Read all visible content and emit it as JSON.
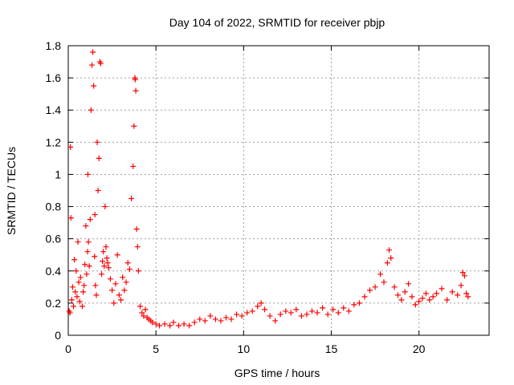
{
  "chart_data": {
    "type": "scatter",
    "title": "Day 104 of 2022, SRMTID for receiver pbjp",
    "xlabel": "GPS time / hours",
    "ylabel": "SRMTID / TECUs",
    "xlim": [
      0,
      24
    ],
    "ylim": [
      0,
      1.8
    ],
    "xticks": [
      "0",
      "5",
      "10",
      "15",
      "20"
    ],
    "yticks": [
      "0",
      "0.2",
      "0.4",
      "0.6",
      "0.8",
      "1",
      "1.2",
      "1.4",
      "1.6",
      "1.8"
    ],
    "grid": true,
    "marker": "plus",
    "color": "#ff0000",
    "series": [
      {
        "name": "SRMTID",
        "points": [
          [
            0.05,
            0.15
          ],
          [
            0.1,
            0.14
          ],
          [
            0.12,
            1.17
          ],
          [
            0.15,
            0.73
          ],
          [
            0.2,
            0.22
          ],
          [
            0.25,
            0.3
          ],
          [
            0.3,
            0.18
          ],
          [
            0.35,
            0.47
          ],
          [
            0.4,
            0.27
          ],
          [
            0.45,
            0.4
          ],
          [
            0.5,
            0.24
          ],
          [
            0.55,
            0.58
          ],
          [
            0.6,
            0.33
          ],
          [
            0.65,
            0.21
          ],
          [
            0.7,
            0.36
          ],
          [
            0.8,
            0.18
          ],
          [
            0.85,
            0.27
          ],
          [
            0.9,
            0.31
          ],
          [
            0.95,
            0.44
          ],
          [
            1.0,
            0.68
          ],
          [
            1.05,
            0.38
          ],
          [
            1.1,
            0.52
          ],
          [
            1.12,
            1.0
          ],
          [
            1.15,
            0.58
          ],
          [
            1.2,
            0.43
          ],
          [
            1.25,
            0.72
          ],
          [
            1.3,
            1.4
          ],
          [
            1.35,
            1.68
          ],
          [
            1.4,
            1.76
          ],
          [
            1.45,
            1.55
          ],
          [
            1.5,
            0.49
          ],
          [
            1.52,
            0.75
          ],
          [
            1.55,
            0.31
          ],
          [
            1.6,
            0.25
          ],
          [
            1.65,
            1.2
          ],
          [
            1.7,
            0.9
          ],
          [
            1.75,
            1.1
          ],
          [
            1.8,
            1.7
          ],
          [
            1.85,
            1.69
          ],
          [
            1.9,
            0.38
          ],
          [
            1.95,
            0.46
          ],
          [
            2.0,
            0.52
          ],
          [
            2.05,
            0.43
          ],
          [
            2.1,
            0.8
          ],
          [
            2.15,
            0.55
          ],
          [
            2.2,
            0.48
          ],
          [
            2.25,
            0.45
          ],
          [
            2.3,
            0.42
          ],
          [
            2.4,
            0.35
          ],
          [
            2.5,
            0.28
          ],
          [
            2.6,
            0.2
          ],
          [
            2.7,
            0.32
          ],
          [
            2.8,
            0.5
          ],
          [
            2.9,
            0.25
          ],
          [
            3.0,
            0.22
          ],
          [
            3.1,
            0.36
          ],
          [
            3.2,
            0.28
          ],
          [
            3.3,
            0.33
          ],
          [
            3.4,
            0.45
          ],
          [
            3.5,
            0.41
          ],
          [
            3.6,
            0.85
          ],
          [
            3.7,
            1.05
          ],
          [
            3.75,
            1.3
          ],
          [
            3.8,
            1.6
          ],
          [
            3.82,
            1.59
          ],
          [
            3.85,
            1.52
          ],
          [
            3.9,
            0.66
          ],
          [
            3.95,
            0.55
          ],
          [
            4.0,
            0.4
          ],
          [
            4.1,
            0.18
          ],
          [
            4.2,
            0.14
          ],
          [
            4.3,
            0.12
          ],
          [
            4.4,
            0.16
          ],
          [
            4.5,
            0.11
          ],
          [
            4.6,
            0.1
          ],
          [
            4.7,
            0.09
          ],
          [
            4.8,
            0.08
          ],
          [
            5.0,
            0.07
          ],
          [
            5.2,
            0.06
          ],
          [
            5.5,
            0.07
          ],
          [
            5.8,
            0.06
          ],
          [
            6.0,
            0.08
          ],
          [
            6.3,
            0.06
          ],
          [
            6.6,
            0.07
          ],
          [
            6.9,
            0.06
          ],
          [
            7.2,
            0.08
          ],
          [
            7.5,
            0.1
          ],
          [
            7.8,
            0.09
          ],
          [
            8.1,
            0.12
          ],
          [
            8.4,
            0.1
          ],
          [
            8.7,
            0.09
          ],
          [
            9.0,
            0.11
          ],
          [
            9.3,
            0.1
          ],
          [
            9.6,
            0.13
          ],
          [
            9.9,
            0.12
          ],
          [
            10.2,
            0.14
          ],
          [
            10.5,
            0.15
          ],
          [
            10.8,
            0.18
          ],
          [
            11.0,
            0.2
          ],
          [
            11.2,
            0.16
          ],
          [
            11.5,
            0.12
          ],
          [
            11.8,
            0.09
          ],
          [
            12.1,
            0.13
          ],
          [
            12.4,
            0.15
          ],
          [
            12.7,
            0.14
          ],
          [
            13.0,
            0.16
          ],
          [
            13.3,
            0.12
          ],
          [
            13.6,
            0.13
          ],
          [
            13.9,
            0.15
          ],
          [
            14.2,
            0.14
          ],
          [
            14.5,
            0.17
          ],
          [
            14.8,
            0.13
          ],
          [
            15.1,
            0.16
          ],
          [
            15.4,
            0.14
          ],
          [
            15.7,
            0.17
          ],
          [
            16.0,
            0.15
          ],
          [
            16.3,
            0.19
          ],
          [
            16.6,
            0.2
          ],
          [
            16.9,
            0.24
          ],
          [
            17.2,
            0.28
          ],
          [
            17.5,
            0.3
          ],
          [
            17.8,
            0.38
          ],
          [
            18.0,
            0.33
          ],
          [
            18.2,
            0.45
          ],
          [
            18.3,
            0.53
          ],
          [
            18.4,
            0.48
          ],
          [
            18.6,
            0.3
          ],
          [
            18.8,
            0.25
          ],
          [
            19.0,
            0.22
          ],
          [
            19.2,
            0.27
          ],
          [
            19.4,
            0.32
          ],
          [
            19.6,
            0.24
          ],
          [
            19.8,
            0.19
          ],
          [
            20.0,
            0.21
          ],
          [
            20.2,
            0.23
          ],
          [
            20.4,
            0.26
          ],
          [
            20.6,
            0.22
          ],
          [
            20.8,
            0.24
          ],
          [
            21.0,
            0.26
          ],
          [
            21.3,
            0.29
          ],
          [
            21.6,
            0.22
          ],
          [
            21.9,
            0.27
          ],
          [
            22.2,
            0.25
          ],
          [
            22.4,
            0.31
          ],
          [
            22.5,
            0.39
          ],
          [
            22.6,
            0.37
          ],
          [
            22.7,
            0.26
          ],
          [
            22.8,
            0.24
          ]
        ]
      }
    ]
  }
}
